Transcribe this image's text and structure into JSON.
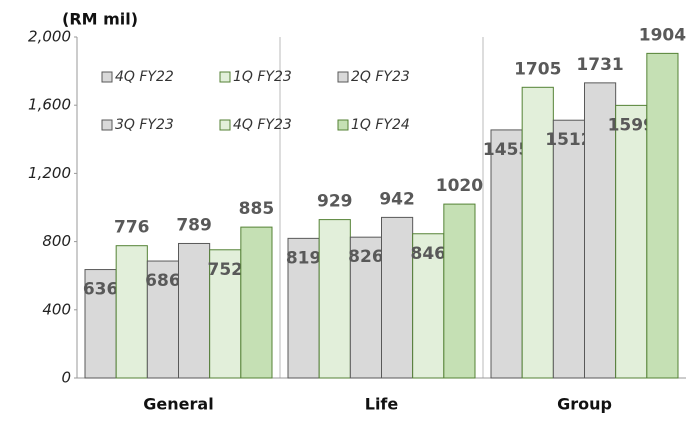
{
  "chart_data": {
    "type": "bar",
    "y_axis_label": "(RM mil)",
    "categories": [
      "General",
      "Life",
      "Group"
    ],
    "series": [
      {
        "name": "4Q FY22",
        "color": "#d9d9d9",
        "values": [
          636,
          819,
          1455
        ]
      },
      {
        "name": "1Q FY23",
        "color": "#e2efda",
        "values": [
          776,
          929,
          1705
        ]
      },
      {
        "name": "2Q FY23",
        "color": "#d9d9d9",
        "values": [
          686,
          826,
          1512
        ]
      },
      {
        "name": "3Q FY23",
        "color": "#d9d9d9",
        "values": [
          789,
          942,
          1731
        ]
      },
      {
        "name": "4Q FY23",
        "color": "#e2efda",
        "values": [
          752,
          846,
          1599
        ]
      },
      {
        "name": "1Q FY24",
        "color": "#c5e0b4",
        "values": [
          885,
          1020,
          1904
        ]
      }
    ],
    "ylim": [
      0,
      2000
    ],
    "yticks": [
      0,
      400,
      800,
      {
        "value": 1200,
        "label": "1,200"
      },
      {
        "value": 1600,
        "label": "1,600"
      },
      {
        "value": 2000,
        "label": "2,000"
      }
    ],
    "grid": false,
    "legend": "upper left"
  }
}
